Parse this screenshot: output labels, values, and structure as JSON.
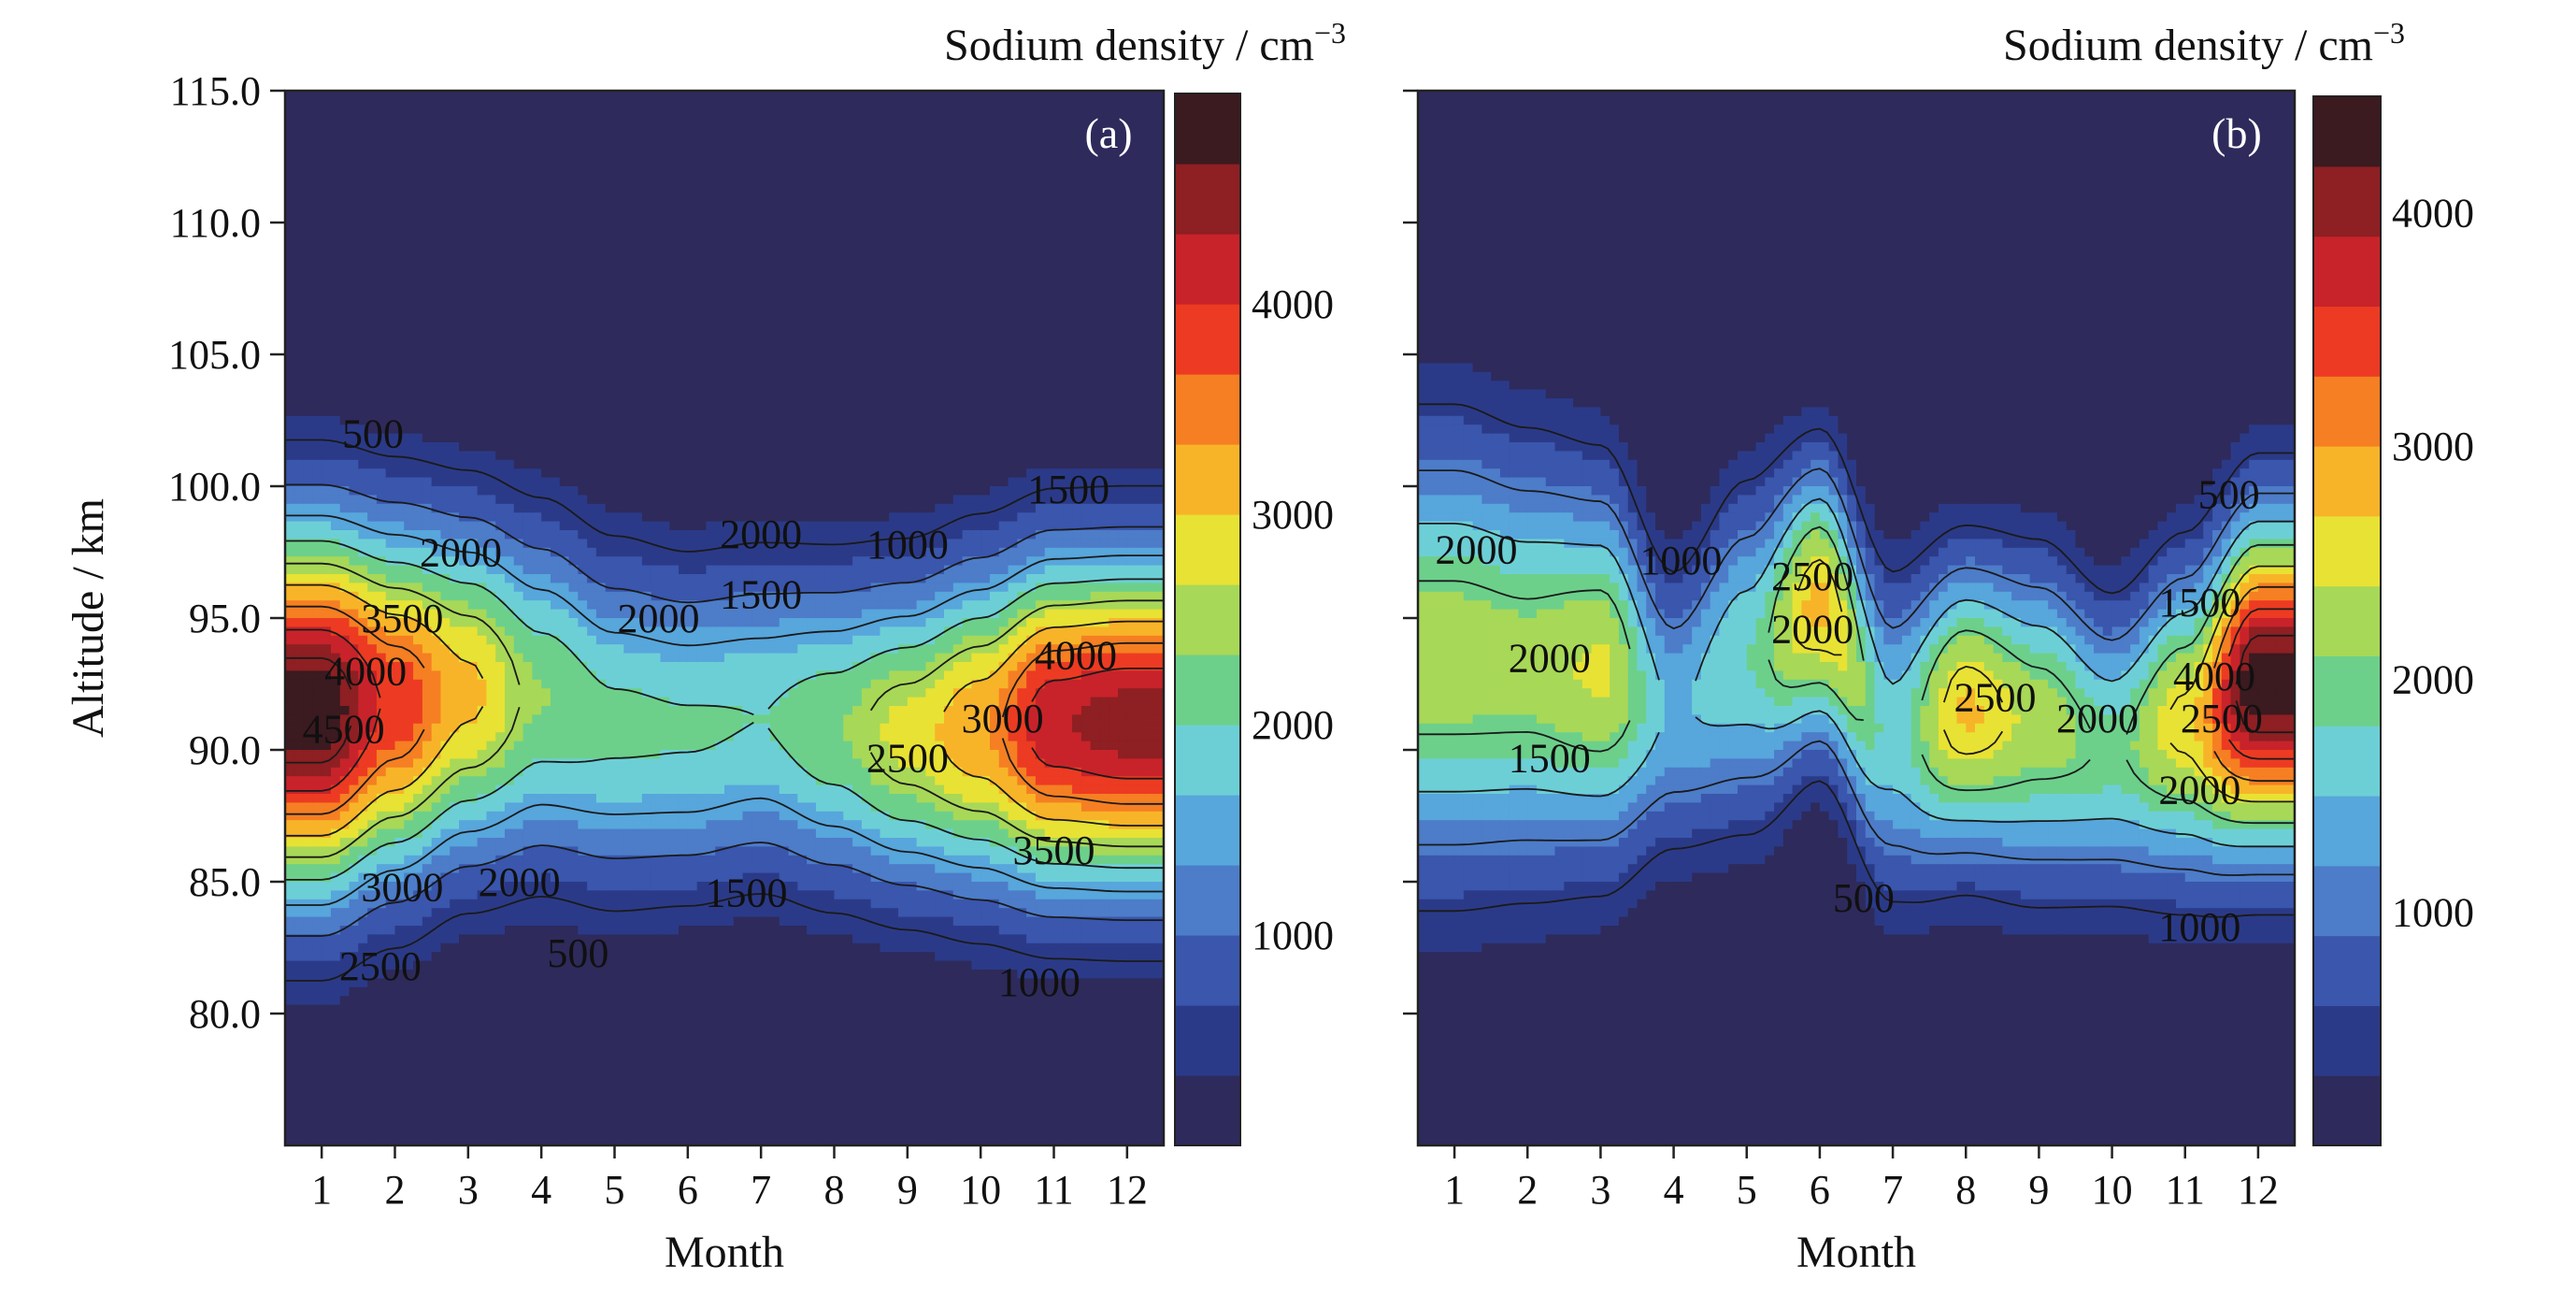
{
  "chart_data": [
    {
      "type": "heatmap",
      "panel_label": "(a)",
      "xlabel": "Month",
      "ylabel": "Altitude / km",
      "x_ticks": [
        "1",
        "2",
        "3",
        "4",
        "5",
        "6",
        "7",
        "8",
        "9",
        "10",
        "11",
        "12"
      ],
      "y_ticks": [
        "80.0",
        "85.0",
        "90.0",
        "95.0",
        "100.0",
        "105.0",
        "110.0",
        "115.0"
      ],
      "xlim": [
        0.5,
        12.5
      ],
      "ylim": [
        75,
        115
      ],
      "colorbar": {
        "label": "Sodium density / cm",
        "label_superscript": "−3",
        "range": [
          0,
          5000
        ],
        "ticks": [
          "1000",
          "2000",
          "3000",
          "4000"
        ]
      },
      "peak_profile": [
        {
          "month": 1,
          "center_km": 91.5,
          "peak": 4900,
          "width_km": 4.8
        },
        {
          "month": 2,
          "center_km": 91.8,
          "peak": 3900,
          "width_km": 4.6
        },
        {
          "month": 3,
          "center_km": 92.2,
          "peak": 3100,
          "width_km": 4.4
        },
        {
          "month": 4,
          "center_km": 92.0,
          "peak": 2350,
          "width_km": 4.3
        },
        {
          "month": 5,
          "center_km": 91.0,
          "peak": 2100,
          "width_km": 4.2
        },
        {
          "month": 6,
          "center_km": 90.8,
          "peak": 2050,
          "width_km": 4.0
        },
        {
          "month": 7,
          "center_km": 91.2,
          "peak": 2000,
          "width_km": 4.0
        },
        {
          "month": 8,
          "center_km": 90.8,
          "peak": 2300,
          "width_km": 4.0
        },
        {
          "month": 9,
          "center_km": 90.6,
          "peak": 2800,
          "width_km": 4.0
        },
        {
          "month": 10,
          "center_km": 90.8,
          "peak": 3300,
          "width_km": 4.2
        },
        {
          "month": 11,
          "center_km": 91.0,
          "peak": 4300,
          "width_km": 4.3
        },
        {
          "month": 12,
          "center_km": 91.0,
          "peak": 4500,
          "width_km": 4.3
        }
      ],
      "contour_levels": [
        500,
        1000,
        1500,
        2000,
        2500,
        3000,
        3500,
        4000,
        4500
      ],
      "contour_labels": [
        {
          "text": "500",
          "month": 1.7,
          "alt": 102.0
        },
        {
          "text": "2000",
          "month": 2.9,
          "alt": 97.5
        },
        {
          "text": "3500",
          "month": 2.1,
          "alt": 95.0
        },
        {
          "text": "4000",
          "month": 1.6,
          "alt": 93.0
        },
        {
          "text": "4500",
          "month": 1.3,
          "alt": 90.8
        },
        {
          "text": "2000",
          "month": 7.0,
          "alt": 98.2
        },
        {
          "text": "1500",
          "month": 7.0,
          "alt": 95.9
        },
        {
          "text": "1000",
          "month": 9.0,
          "alt": 97.8
        },
        {
          "text": "1500",
          "month": 11.2,
          "alt": 99.9
        },
        {
          "text": "2000",
          "month": 5.6,
          "alt": 95.0
        },
        {
          "text": "2500",
          "month": 9.0,
          "alt": 89.7
        },
        {
          "text": "3000",
          "month": 10.3,
          "alt": 91.2
        },
        {
          "text": "4000",
          "month": 11.3,
          "alt": 93.6
        },
        {
          "text": "3500",
          "month": 11.0,
          "alt": 86.2
        },
        {
          "text": "3000",
          "month": 2.1,
          "alt": 84.8
        },
        {
          "text": "2000",
          "month": 3.7,
          "alt": 85.0
        },
        {
          "text": "1500",
          "month": 6.8,
          "alt": 84.6
        },
        {
          "text": "2500",
          "month": 1.8,
          "alt": 81.8
        },
        {
          "text": "500",
          "month": 4.5,
          "alt": 82.3
        },
        {
          "text": "1000",
          "month": 10.8,
          "alt": 81.2
        }
      ]
    },
    {
      "type": "heatmap",
      "panel_label": "(b)",
      "xlabel": "Month",
      "ylabel": "",
      "x_ticks": [
        "1",
        "2",
        "3",
        "4",
        "5",
        "6",
        "7",
        "8",
        "9",
        "10",
        "11",
        "12"
      ],
      "y_ticks": [],
      "xlim": [
        0.5,
        12.5
      ],
      "ylim": [
        75,
        115
      ],
      "colorbar": {
        "label": "Sodium density / cm",
        "label_superscript": "−3",
        "range": [
          0,
          4500
        ],
        "ticks": [
          "1000",
          "2000",
          "3000",
          "4000"
        ]
      },
      "peak_profile": [
        {
          "month": 1,
          "center_km": 93.5,
          "peak": 2300,
          "width_km": 5.5
        },
        {
          "month": 2,
          "center_km": 93.2,
          "peak": 2250,
          "width_km": 5.2
        },
        {
          "month": 3,
          "center_km": 93.0,
          "peak": 2450,
          "width_km": 4.8
        },
        {
          "month": 4,
          "center_km": 91.5,
          "peak": 1450,
          "width_km": 3.6
        },
        {
          "month": 5,
          "center_km": 93.5,
          "peak": 1800,
          "width_km": 4.2
        },
        {
          "month": 6,
          "center_km": 95.5,
          "peak": 2800,
          "width_km": 3.6
        },
        {
          "month": 7,
          "center_km": 90.5,
          "peak": 1700,
          "width_km": 4.0
        },
        {
          "month": 8,
          "center_km": 91.5,
          "peak": 2750,
          "width_km": 3.8
        },
        {
          "month": 9,
          "center_km": 91.0,
          "peak": 2300,
          "width_km": 4.0
        },
        {
          "month": 10,
          "center_km": 90.0,
          "peak": 1950,
          "width_km": 3.6
        },
        {
          "month": 11,
          "center_km": 91.0,
          "peak": 2600,
          "width_km": 4.0
        },
        {
          "month": 12,
          "center_km": 92.5,
          "peak": 4400,
          "width_km": 4.2
        }
      ],
      "contour_levels": [
        500,
        1000,
        1500,
        2000,
        2500,
        3000,
        3500,
        4000
      ],
      "contour_labels": [
        {
          "text": "2000",
          "month": 1.3,
          "alt": 97.6
        },
        {
          "text": "1000",
          "month": 4.1,
          "alt": 97.2
        },
        {
          "text": "2500",
          "month": 5.9,
          "alt": 96.6
        },
        {
          "text": "2000",
          "month": 5.9,
          "alt": 94.6
        },
        {
          "text": "2000",
          "month": 2.3,
          "alt": 93.5
        },
        {
          "text": "1500",
          "month": 2.3,
          "alt": 89.7
        },
        {
          "text": "2500",
          "month": 8.4,
          "alt": 92.0
        },
        {
          "text": "2000",
          "month": 9.8,
          "alt": 91.2
        },
        {
          "text": "1500",
          "month": 11.2,
          "alt": 95.6
        },
        {
          "text": "500",
          "month": 11.6,
          "alt": 99.7
        },
        {
          "text": "4000",
          "month": 11.4,
          "alt": 92.8
        },
        {
          "text": "2500",
          "month": 11.5,
          "alt": 91.2
        },
        {
          "text": "2000",
          "month": 11.2,
          "alt": 88.5
        },
        {
          "text": "500",
          "month": 6.6,
          "alt": 84.4
        },
        {
          "text": "1000",
          "month": 11.2,
          "alt": 83.3
        }
      ]
    }
  ],
  "colormap": [
    "#2e2a5b",
    "#2b3a88",
    "#3a56ad",
    "#4d7cc9",
    "#57a6dc",
    "#6dcfd6",
    "#6cd08b",
    "#a8d857",
    "#e8e234",
    "#f8b428",
    "#f57f22",
    "#ec3b22",
    "#c8232a",
    "#8e1f22",
    "#3b1a20"
  ]
}
